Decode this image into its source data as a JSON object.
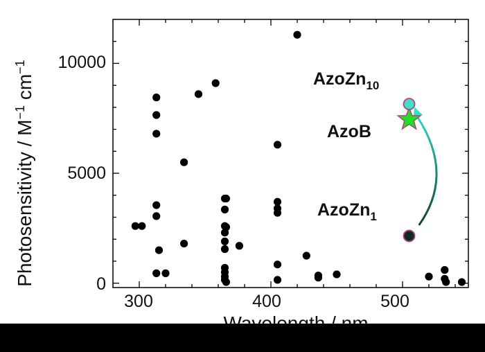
{
  "chart_data": {
    "type": "scatter",
    "xlabel": "Wavelength / nm",
    "ylabel_main": "Photosensitivity / M",
    "ylabel_exp1": "−1",
    "ylabel_cm": " cm",
    "ylabel_exp2": "−1",
    "xlim": [
      280,
      550
    ],
    "ylim": [
      -200,
      12000
    ],
    "xticks": [
      300,
      400,
      500
    ],
    "yticks": [
      0,
      5000,
      10000
    ],
    "xtick_labels": [
      "300",
      "400",
      "500"
    ],
    "ytick_labels": [
      "0",
      "5000",
      "10000"
    ],
    "grid": false,
    "points": [
      [
        297,
        2600
      ],
      [
        302,
        2600
      ],
      [
        313,
        8450
      ],
      [
        313,
        7650
      ],
      [
        313,
        6800
      ],
      [
        313,
        3550
      ],
      [
        313,
        3050
      ],
      [
        313,
        450
      ],
      [
        315,
        1500
      ],
      [
        320,
        450
      ],
      [
        334,
        5500
      ],
      [
        334,
        1800
      ],
      [
        345,
        8600
      ],
      [
        358,
        9100
      ],
      [
        365,
        3850
      ],
      [
        366,
        3850
      ],
      [
        365,
        3350
      ],
      [
        365,
        2600
      ],
      [
        366,
        2550
      ],
      [
        365,
        2300
      ],
      [
        365,
        1900
      ],
      [
        365,
        1550
      ],
      [
        365,
        700
      ],
      [
        365,
        500
      ],
      [
        365,
        300
      ],
      [
        365,
        150
      ],
      [
        366,
        50
      ],
      [
        376,
        1700
      ],
      [
        405,
        6300
      ],
      [
        405,
        3700
      ],
      [
        405,
        3400
      ],
      [
        405,
        3200
      ],
      [
        405,
        850
      ],
      [
        405,
        150
      ],
      [
        420,
        11300
      ],
      [
        427,
        1250
      ],
      [
        436,
        350
      ],
      [
        436,
        250
      ],
      [
        450,
        400
      ],
      [
        520,
        300
      ],
      [
        532,
        600
      ],
      [
        532,
        200
      ],
      [
        533,
        50
      ],
      [
        545,
        50
      ]
    ],
    "highlight_points": [
      {
        "label_main": "AzoZn",
        "label_sub": "1",
        "x": 505,
        "y": 2150,
        "marker": "circle",
        "fill": "#0d2b22",
        "stroke": "#b0457a"
      },
      {
        "label_main": "AzoB",
        "label_sub": "",
        "x": 505,
        "y": 7450,
        "marker": "star",
        "fill": "#22dd22",
        "stroke": "#b0457a"
      },
      {
        "label_main": "AzoZn",
        "label_sub": "10",
        "x": 505,
        "y": 8150,
        "marker": "circle",
        "fill": "#44ddcc",
        "stroke": "#b0457a"
      }
    ],
    "arrow": {
      "from": [
        503,
        2450
      ],
      "to": [
        510,
        7900
      ],
      "color_start": "#0a3d2a",
      "color_end": "#33e0c8"
    },
    "colors": {
      "marker": "#000000",
      "background": "#ffffff",
      "frame": "#000000"
    }
  }
}
